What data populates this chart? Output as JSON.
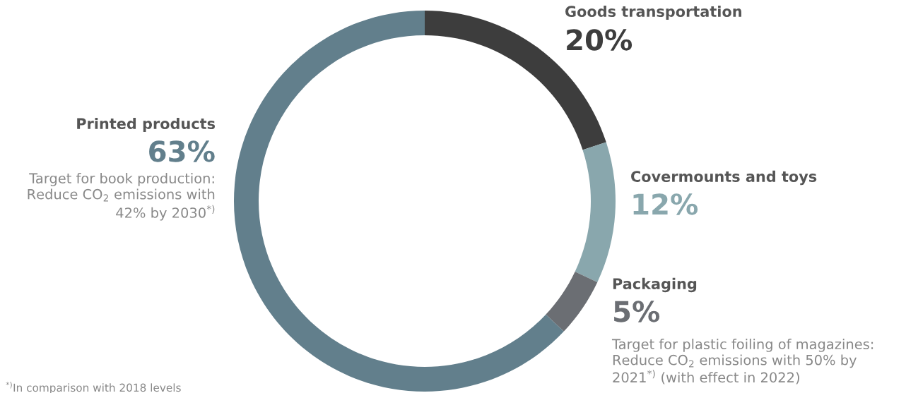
{
  "chart_data": {
    "type": "donut",
    "categories": [
      "Goods transportation",
      "Covermounts and toys",
      "Packaging",
      "Printed products"
    ],
    "values": [
      20,
      12,
      5,
      63
    ],
    "colors": [
      "#3d3d3d",
      "#89a7ad",
      "#6b6e73",
      "#627f8c"
    ],
    "value_labels": [
      "20%",
      "12%",
      "5%",
      "63%"
    ],
    "annotations": [
      "Target for book production:\nReduce CO$_{2}$ emissions with\n42% by 2030$^{*)}$",
      "Target for plastic foiling of magazines:\nReduce CO$_{2}$ emissions with 50% by\n2021$^{*)}$ (with effect in 2022)",
      "$^{*)}$In comparison with 2018 levels"
    ]
  }
}
